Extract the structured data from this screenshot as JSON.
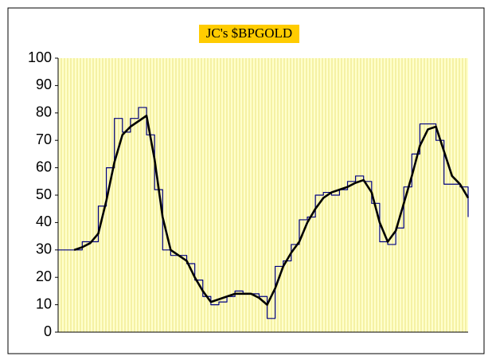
{
  "chart_data": {
    "type": "line",
    "title": "JC's $BPGOLD",
    "ylim": [
      0,
      100
    ],
    "yticks": [
      0,
      10,
      20,
      30,
      40,
      50,
      60,
      70,
      80,
      90,
      100
    ],
    "grid": true,
    "series": [
      {
        "color": "#000080",
        "step": true,
        "values": [
          30,
          30,
          30,
          33,
          33,
          46,
          60,
          78,
          73,
          78,
          82,
          72,
          52,
          30,
          28,
          28,
          25,
          19,
          13,
          10,
          11,
          13,
          15,
          14,
          14,
          13,
          5,
          24,
          26,
          32,
          41,
          42,
          50,
          51,
          50,
          52,
          55,
          57,
          55,
          47,
          33,
          32,
          38,
          53,
          65,
          76,
          76,
          70,
          54,
          54,
          53,
          42
        ]
      },
      {
        "color": "#000000",
        "values": [
          null,
          null,
          30,
          31,
          32.5,
          36,
          48,
          62,
          72,
          75,
          77,
          79,
          63,
          42,
          30,
          28,
          26,
          20,
          15,
          11,
          12,
          13,
          14,
          14,
          14,
          12.5,
          10,
          16,
          24,
          29,
          33,
          40,
          45,
          49,
          51,
          52,
          53,
          54.5,
          55.5,
          51,
          40,
          33,
          37,
          47,
          57,
          68,
          74,
          75,
          66,
          57,
          54,
          49
        ]
      }
    ]
  }
}
